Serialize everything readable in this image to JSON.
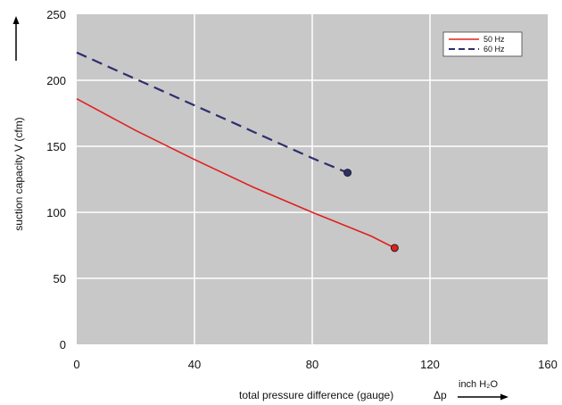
{
  "chart_data": {
    "type": "line",
    "xlabel": "total pressure difference (gauge)",
    "xlabel_symbol": "Δp",
    "x_unit": "inch H₂O",
    "ylabel": "suction capacity V (cfm)",
    "xlim": [
      0,
      160
    ],
    "ylim": [
      0,
      250
    ],
    "xticks": [
      0,
      40,
      80,
      120,
      160
    ],
    "yticks": [
      0,
      50,
      100,
      150,
      200,
      250
    ],
    "grid": true,
    "legend_position": "top-right",
    "series": [
      {
        "name": "50 Hz",
        "style": "solid",
        "color": "#e02020",
        "x": [
          0,
          20,
          40,
          60,
          80,
          100,
          108
        ],
        "y": [
          186,
          162,
          140,
          119,
          100,
          82,
          73
        ],
        "endpoint": {
          "x": 108,
          "y": 73
        }
      },
      {
        "name": "60 Hz",
        "style": "dashed",
        "color": "#2e2e6e",
        "x": [
          0,
          20,
          40,
          60,
          80,
          92
        ],
        "y": [
          221,
          201,
          181,
          161,
          141,
          130
        ],
        "endpoint": {
          "x": 92,
          "y": 130
        }
      }
    ]
  },
  "colors": {
    "plot_background": "#c8c8c8",
    "grid": "#ffffff"
  }
}
